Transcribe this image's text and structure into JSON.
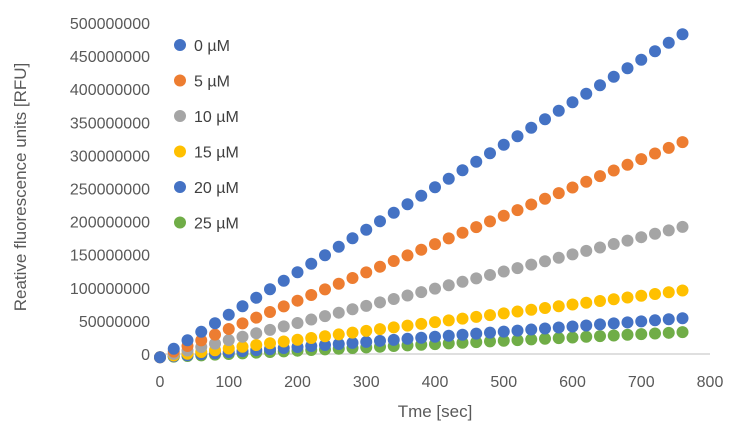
{
  "chart_data": {
    "type": "scatter",
    "xlabel": "Tme [sec]",
    "ylabel": "Reative fluorescence units [RFU]",
    "xlim": [
      0,
      800
    ],
    "ylim": [
      0,
      500000000
    ],
    "xticks": [
      "0",
      "100",
      "200",
      "300",
      "400",
      "500",
      "600",
      "700",
      "800"
    ],
    "yticks": [
      "0",
      "50000000",
      "100000000",
      "150000000",
      "200000000",
      "250000000",
      "300000000",
      "350000000",
      "400000000",
      "450000000",
      "500000000"
    ],
    "grid": false,
    "legend_position": "top-left",
    "x_start": 0,
    "x_step": 20,
    "points": 39,
    "series": [
      {
        "name": "0 µM",
        "color": "#4472C4",
        "y_start": -5000000,
        "y_end": 483000000
      },
      {
        "name": "5 µM",
        "color": "#ED7D31",
        "y_start": -5000000,
        "y_end": 320000000
      },
      {
        "name": "10 µM",
        "color": "#A5A5A5",
        "y_start": -5000000,
        "y_end": 192000000
      },
      {
        "name": "15 µM",
        "color": "#FFC000",
        "y_start": -5000000,
        "y_end": 96000000
      },
      {
        "name": "20 µM",
        "color": "#4472C4",
        "y_start": -5000000,
        "y_end": 54000000
      },
      {
        "name": "25 µM",
        "color": "#70AD47",
        "y_start": -5000000,
        "y_end": 33000000
      }
    ]
  }
}
